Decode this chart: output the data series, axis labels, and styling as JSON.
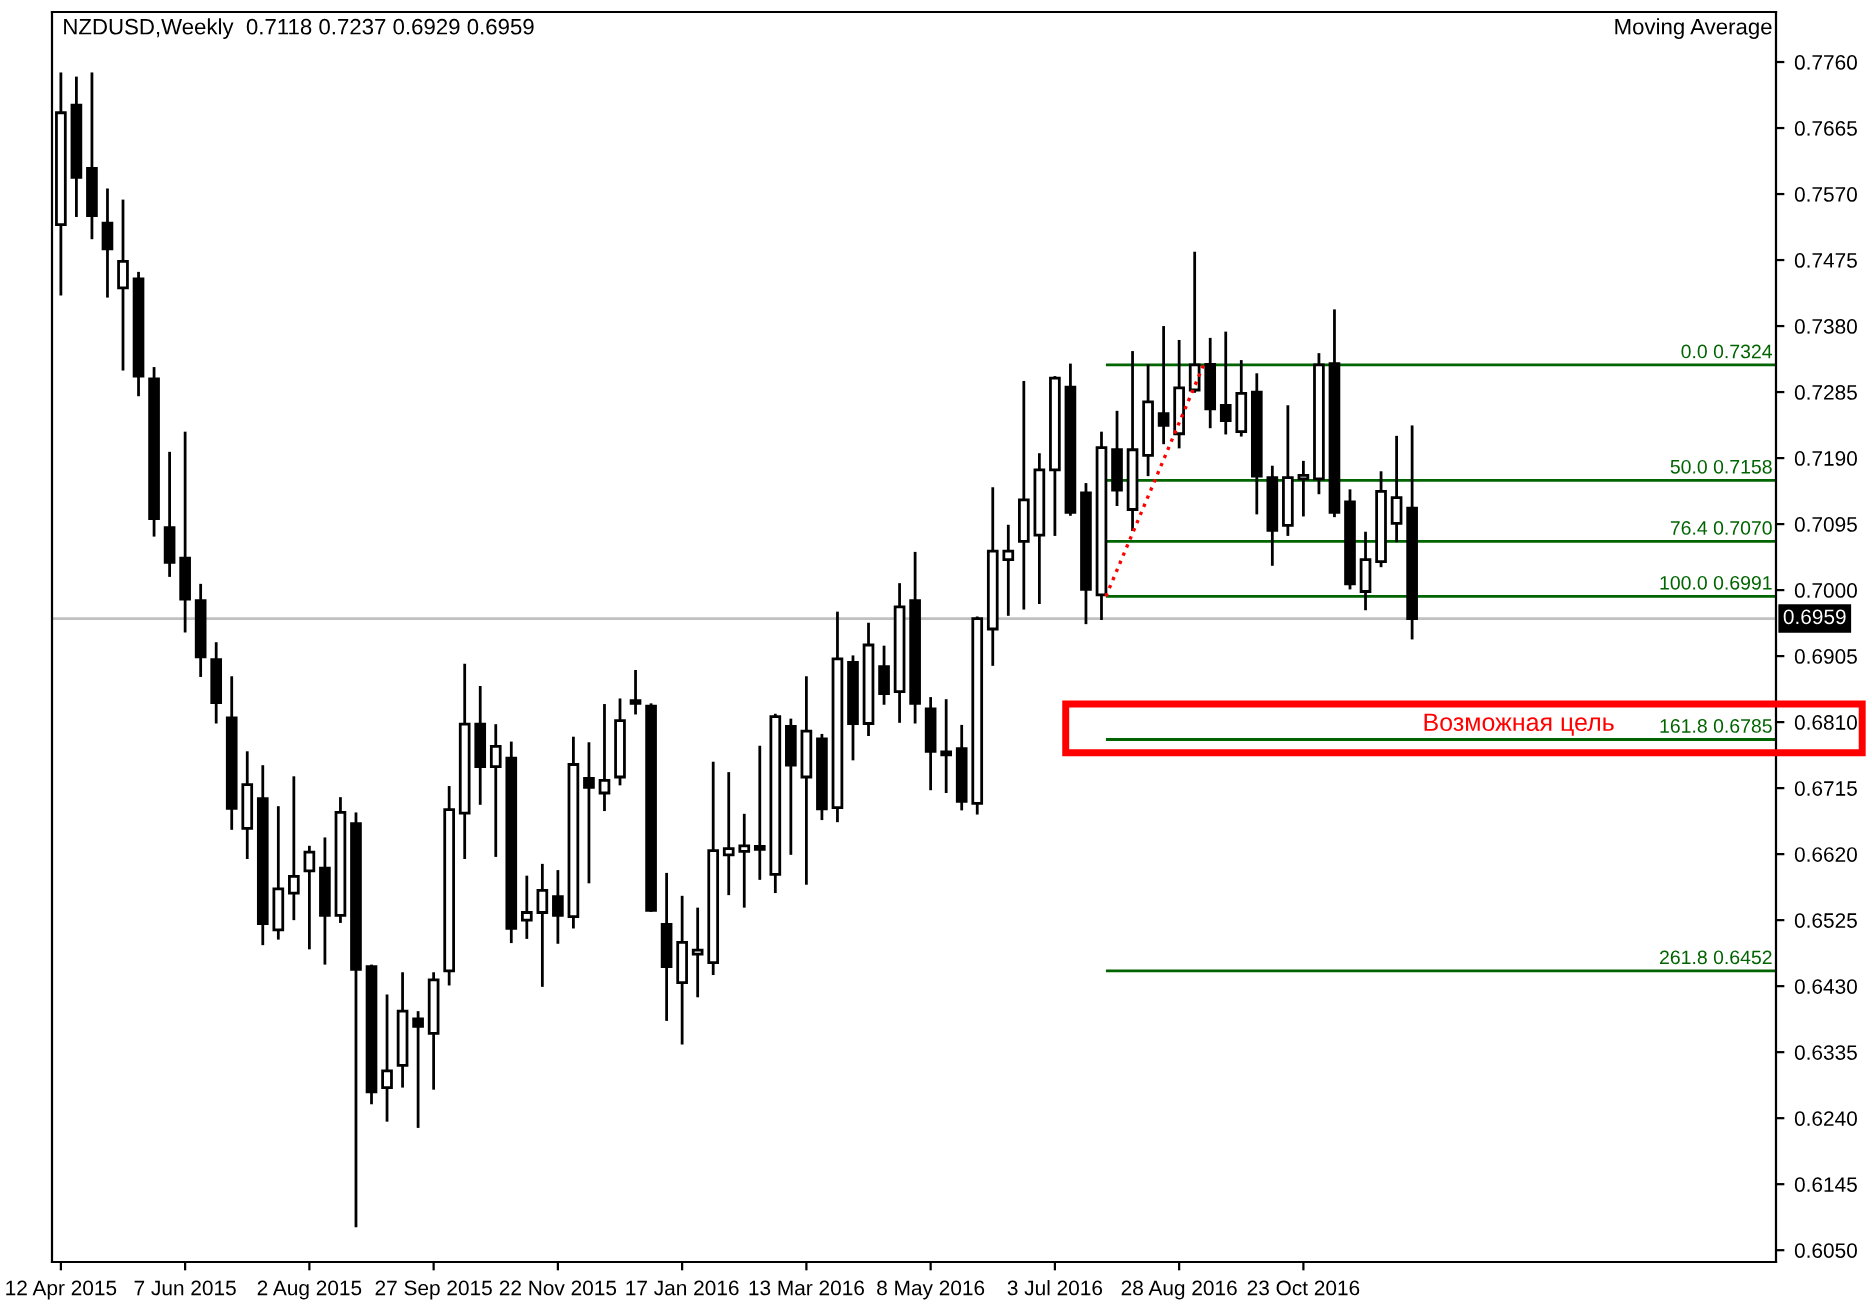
{
  "chart_data": {
    "type": "candlestick",
    "title": "NZDUSD,Weekly  0.7118 0.7237 0.6929 0.6959",
    "x": [
      "2015-04-12",
      "2015-04-19",
      "2015-04-26",
      "2015-05-03",
      "2015-05-10",
      "2015-05-17",
      "2015-05-24",
      "2015-05-31",
      "2015-06-07",
      "2015-06-14",
      "2015-06-21",
      "2015-06-28",
      "2015-07-05",
      "2015-07-12",
      "2015-07-19",
      "2015-07-26",
      "2015-08-02",
      "2015-08-09",
      "2015-08-16",
      "2015-08-23",
      "2015-08-30",
      "2015-09-06",
      "2015-09-13",
      "2015-09-20",
      "2015-09-27",
      "2015-10-04",
      "2015-10-11",
      "2015-10-18",
      "2015-10-25",
      "2015-11-01",
      "2015-11-08",
      "2015-11-15",
      "2015-11-22",
      "2015-11-29",
      "2015-12-06",
      "2015-12-13",
      "2015-12-20",
      "2015-12-27",
      "2016-01-03",
      "2016-01-10",
      "2016-01-17",
      "2016-01-24",
      "2016-01-31",
      "2016-02-07",
      "2016-02-14",
      "2016-02-21",
      "2016-02-28",
      "2016-03-06",
      "2016-03-13",
      "2016-03-20",
      "2016-03-27",
      "2016-04-03",
      "2016-04-10",
      "2016-04-17",
      "2016-04-24",
      "2016-05-01",
      "2016-05-08",
      "2016-05-15",
      "2016-05-22",
      "2016-05-29",
      "2016-06-05",
      "2016-06-12",
      "2016-06-19",
      "2016-06-26",
      "2016-07-03",
      "2016-07-10",
      "2016-07-17",
      "2016-07-24",
      "2016-07-31",
      "2016-08-07",
      "2016-08-14",
      "2016-08-21",
      "2016-08-28",
      "2016-09-04",
      "2016-09-11",
      "2016-09-18",
      "2016-09-25",
      "2016-10-02",
      "2016-10-09",
      "2016-10-16",
      "2016-10-23",
      "2016-10-30",
      "2016-11-06",
      "2016-11-13",
      "2016-11-20",
      "2016-11-27",
      "2016-12-04",
      "2016-12-11"
    ],
    "ohlc": [
      [
        0.7526,
        0.7745,
        0.7424,
        0.7687
      ],
      [
        0.7698,
        0.7739,
        0.7537,
        0.7594
      ],
      [
        0.7607,
        0.7745,
        0.7505,
        0.7539
      ],
      [
        0.7528,
        0.7578,
        0.7421,
        0.7491
      ],
      [
        0.7435,
        0.7562,
        0.7316,
        0.7473
      ],
      [
        0.7448,
        0.7458,
        0.7279,
        0.7308
      ],
      [
        0.7304,
        0.7321,
        0.7077,
        0.7103
      ],
      [
        0.709,
        0.7199,
        0.7019,
        0.704
      ],
      [
        0.7046,
        0.7228,
        0.6939,
        0.6987
      ],
      [
        0.6985,
        0.7009,
        0.6875,
        0.6904
      ],
      [
        0.69,
        0.6925,
        0.6808,
        0.6838
      ],
      [
        0.6816,
        0.6876,
        0.6655,
        0.6686
      ],
      [
        0.6657,
        0.6768,
        0.6613,
        0.672
      ],
      [
        0.67,
        0.6748,
        0.6489,
        0.652
      ],
      [
        0.6511,
        0.6689,
        0.6497,
        0.657
      ],
      [
        0.6564,
        0.6732,
        0.6525,
        0.6588
      ],
      [
        0.6596,
        0.6632,
        0.6483,
        0.6623
      ],
      [
        0.66,
        0.6644,
        0.6461,
        0.6532
      ],
      [
        0.6532,
        0.6702,
        0.6521,
        0.668
      ],
      [
        0.6664,
        0.668,
        0.6083,
        0.6454
      ],
      [
        0.6458,
        0.6461,
        0.626,
        0.6278
      ],
      [
        0.6284,
        0.6418,
        0.6235,
        0.6308
      ],
      [
        0.6316,
        0.645,
        0.6284,
        0.6394
      ],
      [
        0.6383,
        0.6394,
        0.6226,
        0.6372
      ],
      [
        0.6362,
        0.645,
        0.6281,
        0.6439
      ],
      [
        0.6452,
        0.6718,
        0.6431,
        0.6684
      ],
      [
        0.6679,
        0.6894,
        0.6613,
        0.6807
      ],
      [
        0.6807,
        0.6862,
        0.6691,
        0.6746
      ],
      [
        0.6746,
        0.6807,
        0.6616,
        0.6775
      ],
      [
        0.6758,
        0.6782,
        0.6492,
        0.6513
      ],
      [
        0.6525,
        0.6589,
        0.6498,
        0.6536
      ],
      [
        0.6536,
        0.6606,
        0.6429,
        0.6568
      ],
      [
        0.6559,
        0.6597,
        0.6491,
        0.6532
      ],
      [
        0.653,
        0.6789,
        0.6513,
        0.6749
      ],
      [
        0.6729,
        0.6781,
        0.6578,
        0.6716
      ],
      [
        0.6708,
        0.6836,
        0.6682,
        0.6726
      ],
      [
        0.6731,
        0.6844,
        0.6719,
        0.6812
      ],
      [
        0.6841,
        0.6885,
        0.6821,
        0.6837
      ],
      [
        0.6833,
        0.6837,
        0.6537,
        0.6539
      ],
      [
        0.6519,
        0.6593,
        0.638,
        0.6458
      ],
      [
        0.6435,
        0.656,
        0.6346,
        0.6493
      ],
      [
        0.6476,
        0.6543,
        0.6414,
        0.6482
      ],
      [
        0.6464,
        0.6753,
        0.6446,
        0.6625
      ],
      [
        0.6619,
        0.6738,
        0.6561,
        0.6628
      ],
      [
        0.6624,
        0.6678,
        0.6543,
        0.6632
      ],
      [
        0.6631,
        0.6776,
        0.6583,
        0.6627
      ],
      [
        0.6591,
        0.6822,
        0.6564,
        0.6818
      ],
      [
        0.6804,
        0.6815,
        0.6619,
        0.6748
      ],
      [
        0.6731,
        0.6876,
        0.6576,
        0.6797
      ],
      [
        0.6786,
        0.6793,
        0.6669,
        0.6685
      ],
      [
        0.6687,
        0.6969,
        0.6666,
        0.6901
      ],
      [
        0.6896,
        0.6906,
        0.6755,
        0.6808
      ],
      [
        0.6808,
        0.6953,
        0.679,
        0.6921
      ],
      [
        0.689,
        0.692,
        0.6835,
        0.6851
      ],
      [
        0.6854,
        0.701,
        0.6809,
        0.6976
      ],
      [
        0.6985,
        0.7055,
        0.6808,
        0.6837
      ],
      [
        0.6829,
        0.6846,
        0.6712,
        0.6768
      ],
      [
        0.6767,
        0.6843,
        0.6708,
        0.6763
      ],
      [
        0.6772,
        0.6806,
        0.6683,
        0.6696
      ],
      [
        0.6693,
        0.6962,
        0.6677,
        0.6959
      ],
      [
        0.6944,
        0.7148,
        0.6891,
        0.7056
      ],
      [
        0.7044,
        0.7094,
        0.6963,
        0.7056
      ],
      [
        0.707,
        0.7301,
        0.6972,
        0.713
      ],
      [
        0.7079,
        0.7197,
        0.698,
        0.7173
      ],
      [
        0.7173,
        0.7308,
        0.7078,
        0.7305
      ],
      [
        0.7292,
        0.7326,
        0.7107,
        0.7112
      ],
      [
        0.714,
        0.7154,
        0.6951,
        0.7001
      ],
      [
        0.6993,
        0.7228,
        0.6957,
        0.7205
      ],
      [
        0.7202,
        0.7258,
        0.7121,
        0.7144
      ],
      [
        0.7116,
        0.7344,
        0.7085,
        0.7202
      ],
      [
        0.7194,
        0.7325,
        0.7164,
        0.7271
      ],
      [
        0.7254,
        0.738,
        0.721,
        0.7237
      ],
      [
        0.7225,
        0.736,
        0.7204,
        0.7291
      ],
      [
        0.7288,
        0.7487,
        0.7284,
        0.7324
      ],
      [
        0.7325,
        0.7363,
        0.7233,
        0.7261
      ],
      [
        0.7266,
        0.7372,
        0.7224,
        0.7244
      ],
      [
        0.7228,
        0.7331,
        0.7221,
        0.7283
      ],
      [
        0.7285,
        0.7312,
        0.7109,
        0.7164
      ],
      [
        0.7162,
        0.7179,
        0.7035,
        0.7086
      ],
      [
        0.7093,
        0.7266,
        0.7078,
        0.7162
      ],
      [
        0.716,
        0.7186,
        0.7106,
        0.7165
      ],
      [
        0.716,
        0.7341,
        0.7138,
        0.7324
      ],
      [
        0.7326,
        0.7404,
        0.7105,
        0.7112
      ],
      [
        0.7127,
        0.7145,
        0.7001,
        0.7009
      ],
      [
        0.6998,
        0.7084,
        0.6971,
        0.7044
      ],
      [
        0.7041,
        0.7171,
        0.7033,
        0.7142
      ],
      [
        0.7096,
        0.7222,
        0.7069,
        0.7133
      ],
      [
        0.7118,
        0.7237,
        0.6929,
        0.6959
      ]
    ],
    "series": [
      {
        "type": "line",
        "x": [
          "2016-07-26",
          "2016-09-08"
        ],
        "values": [
          0.6991,
          0.7324
        ],
        "color": "#ff0000",
        "line_style": "dotted"
      }
    ],
    "ref_lines": [
      {
        "axis": "y",
        "value": 0.6959,
        "label": "0.6959",
        "color": "#c0c0c0"
      },
      {
        "axis": "y",
        "value": 0.7324,
        "label": "0.0 0.7324",
        "color": "#006400"
      },
      {
        "axis": "y",
        "value": 0.7158,
        "label": "50.0 0.7158",
        "color": "#006400"
      },
      {
        "axis": "y",
        "value": 0.707,
        "label": "76.4 0.7070",
        "color": "#006400"
      },
      {
        "axis": "y",
        "value": 0.6991,
        "label": "100.0 0.6991",
        "color": "#006400"
      },
      {
        "axis": "y",
        "value": 0.6785,
        "label": "161.8 0.6785",
        "color": "#006400"
      },
      {
        "axis": "y",
        "value": 0.6452,
        "label": "261.8 0.6452",
        "color": "#006400"
      }
    ],
    "annotations": [
      "Moving Average",
      {
        "text": "Возможная цель",
        "x": "2017-01-28",
        "y": 0.6785
      }
    ],
    "xlim": [
      "2015-04-08",
      "2017-05-24"
    ],
    "xticks": [
      {
        "value": "2015-04-12",
        "label": "12 Apr 2015"
      },
      {
        "value": "2015-06-07",
        "label": "7 Jun 2015"
      },
      {
        "value": "2015-08-02",
        "label": "2 Aug 2015"
      },
      {
        "value": "2015-09-27",
        "label": "27 Sep 2015"
      },
      {
        "value": "2015-11-22",
        "label": "22 Nov 2015"
      },
      {
        "value": "2016-01-17",
        "label": "17 Jan 2016"
      },
      {
        "value": "2016-03-13",
        "label": "13 Mar 2016"
      },
      {
        "value": "2016-05-08",
        "label": "8 May 2016"
      },
      {
        "value": "2016-07-03",
        "label": "3 Jul 2016"
      },
      {
        "value": "2016-08-28",
        "label": "28 Aug 2016"
      },
      {
        "value": "2016-10-23",
        "label": "23 Oct 2016"
      }
    ],
    "ylim": [
      0.6033,
      0.7832
    ],
    "yticks": [
      {
        "value": 0.776,
        "label": "0.7760"
      },
      0.7665,
      {
        "value": 0.757,
        "label": "0.7570"
      },
      0.7475,
      {
        "value": 0.738,
        "label": "0.7380"
      },
      0.7285,
      {
        "value": 0.719,
        "label": "0.7190"
      },
      0.7095,
      {
        "value": 0.7,
        "label": "0.7000"
      },
      0.6905,
      {
        "value": 0.681,
        "label": "0.6810"
      },
      0.6715,
      {
        "value": 0.662,
        "label": "0.6620"
      },
      0.6525,
      {
        "value": 0.643,
        "label": "0.6430"
      },
      0.6335,
      {
        "value": 0.624,
        "label": "0.6240"
      },
      0.6145,
      {
        "value": 0.605,
        "label": "0.6050"
      }
    ],
    "grid": false,
    "legend": false
  }
}
